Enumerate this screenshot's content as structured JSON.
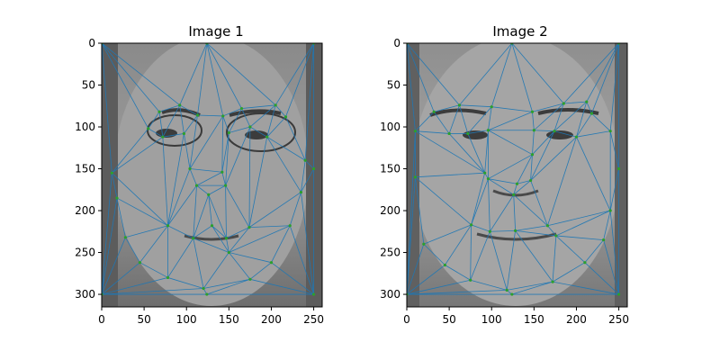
{
  "chart_data": [
    {
      "type": "scatter",
      "title": "Image 1",
      "xlabel": "",
      "ylabel": "",
      "xlim": [
        0,
        260
      ],
      "ylim": [
        315,
        0
      ],
      "x_ticks": [
        0,
        50,
        100,
        150,
        200,
        250
      ],
      "y_ticks": [
        0,
        50,
        100,
        150,
        200,
        250,
        300
      ],
      "background": "grayscale face photograph with Delaunay triangulation overlay",
      "edge_color": "#1f77b4",
      "point_color": "#2ca02c",
      "points": [
        [
          0,
          0
        ],
        [
          124,
          0
        ],
        [
          250,
          0
        ],
        [
          0,
          300
        ],
        [
          124,
          300
        ],
        [
          250,
          300
        ],
        [
          12,
          155
        ],
        [
          18,
          185
        ],
        [
          28,
          232
        ],
        [
          45,
          262
        ],
        [
          78,
          280
        ],
        [
          120,
          293
        ],
        [
          175,
          282
        ],
        [
          200,
          262
        ],
        [
          222,
          218
        ],
        [
          235,
          178
        ],
        [
          240,
          140
        ],
        [
          250,
          150
        ],
        [
          68,
          82
        ],
        [
          92,
          74
        ],
        [
          113,
          86
        ],
        [
          143,
          87
        ],
        [
          165,
          78
        ],
        [
          205,
          74
        ],
        [
          217,
          88
        ],
        [
          55,
          102
        ],
        [
          72,
          112
        ],
        [
          97,
          108
        ],
        [
          150,
          107
        ],
        [
          175,
          100
        ],
        [
          195,
          112
        ],
        [
          104,
          150
        ],
        [
          142,
          154
        ],
        [
          112,
          170
        ],
        [
          146,
          170
        ],
        [
          126,
          181
        ],
        [
          78,
          218
        ],
        [
          108,
          233
        ],
        [
          130,
          218
        ],
        [
          147,
          233
        ],
        [
          174,
          220
        ],
        [
          150,
          250
        ]
      ],
      "triangles": [
        [
          0,
          1,
          19
        ],
        [
          1,
          2,
          23
        ],
        [
          0,
          19,
          18
        ],
        [
          1,
          19,
          20
        ],
        [
          1,
          20,
          21
        ],
        [
          1,
          21,
          22
        ],
        [
          1,
          22,
          23
        ],
        [
          2,
          23,
          24
        ],
        [
          2,
          24,
          16
        ],
        [
          2,
          16,
          17
        ],
        [
          0,
          18,
          25
        ],
        [
          0,
          25,
          6
        ],
        [
          0,
          6,
          3
        ],
        [
          6,
          7,
          3
        ],
        [
          7,
          8,
          3
        ],
        [
          8,
          9,
          3
        ],
        [
          9,
          10,
          3
        ],
        [
          10,
          11,
          3
        ],
        [
          3,
          11,
          4
        ],
        [
          4,
          11,
          12
        ],
        [
          4,
          12,
          5
        ],
        [
          12,
          13,
          5
        ],
        [
          13,
          14,
          5
        ],
        [
          14,
          15,
          5
        ],
        [
          15,
          17,
          5
        ],
        [
          15,
          16,
          17
        ],
        [
          18,
          19,
          26
        ],
        [
          19,
          20,
          27
        ],
        [
          20,
          21,
          31
        ],
        [
          21,
          22,
          28
        ],
        [
          22,
          23,
          29
        ],
        [
          23,
          24,
          30
        ],
        [
          18,
          25,
          26
        ],
        [
          25,
          6,
          26
        ],
        [
          26,
          27,
          19
        ],
        [
          27,
          31,
          20
        ],
        [
          21,
          31,
          32
        ],
        [
          21,
          28,
          32
        ],
        [
          22,
          28,
          29
        ],
        [
          23,
          29,
          30
        ],
        [
          24,
          30,
          16
        ],
        [
          30,
          16,
          15
        ],
        [
          6,
          7,
          36
        ],
        [
          6,
          26,
          36
        ],
        [
          26,
          27,
          36
        ],
        [
          27,
          31,
          36
        ],
        [
          31,
          33,
          36
        ],
        [
          31,
          32,
          33
        ],
        [
          32,
          34,
          33
        ],
        [
          33,
          34,
          35
        ],
        [
          28,
          32,
          34
        ],
        [
          28,
          29,
          34
        ],
        [
          29,
          30,
          40
        ],
        [
          29,
          34,
          40
        ],
        [
          30,
          15,
          40
        ],
        [
          15,
          14,
          40
        ],
        [
          7,
          8,
          36
        ],
        [
          8,
          9,
          36
        ],
        [
          9,
          10,
          36
        ],
        [
          10,
          37,
          36
        ],
        [
          33,
          35,
          37
        ],
        [
          33,
          36,
          37
        ],
        [
          35,
          37,
          38
        ],
        [
          35,
          38,
          39
        ],
        [
          35,
          34,
          39
        ],
        [
          34,
          40,
          39
        ],
        [
          37,
          38,
          41
        ],
        [
          38,
          39,
          41
        ],
        [
          39,
          40,
          41
        ],
        [
          40,
          14,
          41
        ],
        [
          14,
          13,
          41
        ],
        [
          10,
          11,
          37
        ],
        [
          11,
          41,
          37
        ],
        [
          11,
          12,
          41
        ],
        [
          12,
          13,
          41
        ]
      ]
    },
    {
      "type": "scatter",
      "title": "Image 2",
      "xlabel": "",
      "ylabel": "",
      "xlim": [
        0,
        260
      ],
      "ylim": [
        315,
        0
      ],
      "x_ticks": [
        0,
        50,
        100,
        150,
        200,
        250
      ],
      "y_ticks": [
        0,
        50,
        100,
        150,
        200,
        250,
        300
      ],
      "background": "grayscale face photograph with Delaunay triangulation overlay",
      "edge_color": "#1f77b4",
      "point_color": "#2ca02c",
      "points": [
        [
          0,
          0
        ],
        [
          124,
          0
        ],
        [
          250,
          0
        ],
        [
          0,
          300
        ],
        [
          124,
          300
        ],
        [
          250,
          300
        ],
        [
          10,
          105
        ],
        [
          10,
          160
        ],
        [
          20,
          240
        ],
        [
          45,
          265
        ],
        [
          75,
          283
        ],
        [
          118,
          295
        ],
        [
          172,
          285
        ],
        [
          210,
          262
        ],
        [
          232,
          235
        ],
        [
          240,
          200
        ],
        [
          240,
          105
        ],
        [
          250,
          150
        ],
        [
          32,
          82
        ],
        [
          62,
          74
        ],
        [
          100,
          76
        ],
        [
          148,
          82
        ],
        [
          185,
          72
        ],
        [
          212,
          70
        ],
        [
          218,
          84
        ],
        [
          50,
          108
        ],
        [
          72,
          108
        ],
        [
          96,
          104
        ],
        [
          150,
          104
        ],
        [
          174,
          105
        ],
        [
          200,
          112
        ],
        [
          92,
          155
        ],
        [
          148,
          133
        ],
        [
          96,
          162
        ],
        [
          130,
          168
        ],
        [
          146,
          164
        ],
        [
          126,
          181
        ],
        [
          76,
          217
        ],
        [
          98,
          225
        ],
        [
          128,
          224
        ],
        [
          166,
          218
        ],
        [
          176,
          230
        ]
      ],
      "triangles": [
        [
          0,
          1,
          19
        ],
        [
          1,
          2,
          22
        ],
        [
          0,
          19,
          18
        ],
        [
          1,
          19,
          20
        ],
        [
          1,
          20,
          21
        ],
        [
          1,
          21,
          22
        ],
        [
          2,
          22,
          23
        ],
        [
          2,
          23,
          24
        ],
        [
          2,
          24,
          16
        ],
        [
          2,
          16,
          17
        ],
        [
          0,
          18,
          6
        ],
        [
          0,
          6,
          3
        ],
        [
          6,
          7,
          3
        ],
        [
          7,
          8,
          3
        ],
        [
          8,
          9,
          3
        ],
        [
          9,
          10,
          3
        ],
        [
          10,
          11,
          3
        ],
        [
          3,
          11,
          4
        ],
        [
          4,
          11,
          12
        ],
        [
          4,
          12,
          5
        ],
        [
          12,
          13,
          5
        ],
        [
          13,
          14,
          5
        ],
        [
          14,
          15,
          5
        ],
        [
          15,
          17,
          5
        ],
        [
          15,
          16,
          17
        ],
        [
          18,
          19,
          25
        ],
        [
          18,
          6,
          25
        ],
        [
          19,
          20,
          26
        ],
        [
          19,
          25,
          26
        ],
        [
          20,
          27,
          26
        ],
        [
          20,
          21,
          27
        ],
        [
          21,
          28,
          27
        ],
        [
          21,
          22,
          28
        ],
        [
          22,
          29,
          28
        ],
        [
          22,
          23,
          29
        ],
        [
          23,
          24,
          30
        ],
        [
          23,
          29,
          30
        ],
        [
          24,
          16,
          30
        ],
        [
          16,
          15,
          30
        ],
        [
          6,
          7,
          31
        ],
        [
          6,
          25,
          31
        ],
        [
          25,
          26,
          31
        ],
        [
          26,
          27,
          31
        ],
        [
          27,
          33,
          31
        ],
        [
          27,
          28,
          32
        ],
        [
          27,
          32,
          33
        ],
        [
          28,
          29,
          32
        ],
        [
          29,
          30,
          35
        ],
        [
          29,
          32,
          35
        ],
        [
          32,
          34,
          33
        ],
        [
          32,
          35,
          34
        ],
        [
          33,
          34,
          36
        ],
        [
          34,
          35,
          36
        ],
        [
          30,
          15,
          40
        ],
        [
          30,
          35,
          40
        ],
        [
          35,
          36,
          40
        ],
        [
          7,
          8,
          37
        ],
        [
          7,
          31,
          37
        ],
        [
          31,
          33,
          37
        ],
        [
          33,
          36,
          38
        ],
        [
          33,
          37,
          38
        ],
        [
          36,
          39,
          38
        ],
        [
          36,
          40,
          39
        ],
        [
          8,
          9,
          37
        ],
        [
          9,
          10,
          37
        ],
        [
          10,
          38,
          37
        ],
        [
          10,
          11,
          38
        ],
        [
          11,
          39,
          38
        ],
        [
          11,
          12,
          39
        ],
        [
          12,
          41,
          39
        ],
        [
          39,
          41,
          40
        ],
        [
          12,
          13,
          41
        ],
        [
          13,
          14,
          41
        ],
        [
          14,
          15,
          41
        ],
        [
          15,
          40,
          41
        ]
      ]
    }
  ]
}
